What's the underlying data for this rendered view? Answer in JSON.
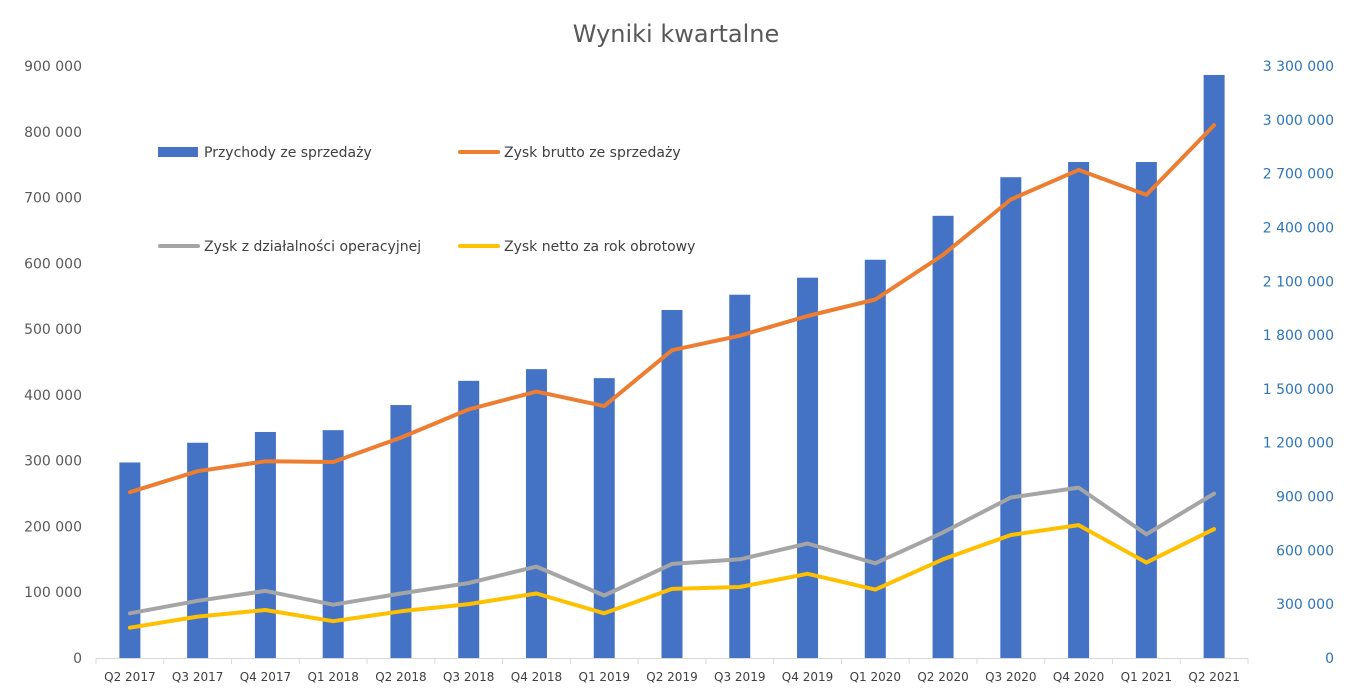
{
  "chart_data": {
    "type": "bar",
    "title": "Wyniki kwartalne",
    "categories": [
      "Q2 2017",
      "Q3 2017",
      "Q4 2017",
      "Q1 2018",
      "Q2 2018",
      "Q3 2018",
      "Q4 2018",
      "Q1 2019",
      "Q2 2019",
      "Q3 2019",
      "Q4 2019",
      "Q1 2020",
      "Q2 2020",
      "Q3 2020",
      "Q4 2020",
      "Q1 2021",
      "Q2 2021"
    ],
    "left_axis": {
      "min": 0,
      "max": 900000,
      "ticks": [
        0,
        100000,
        200000,
        300000,
        400000,
        500000,
        600000,
        700000,
        800000,
        900000
      ],
      "tick_labels": [
        "0",
        "100 000",
        "200 000",
        "300 000",
        "400 000",
        "500 000",
        "600 000",
        "700 000",
        "800 000",
        "900 000"
      ]
    },
    "right_axis": {
      "min": 0,
      "max": 3300000,
      "ticks": [
        0,
        300000,
        600000,
        900000,
        1200000,
        1500000,
        1800000,
        2100000,
        2400000,
        2700000,
        3000000,
        3300000
      ],
      "tick_labels": [
        "0",
        "300 000",
        "600 000",
        "900 000",
        "1 200 000",
        "1 500 000",
        "1 800 000",
        "2 100 000",
        "2 400 000",
        "2 700 000",
        "3 000 000",
        "3 300 000"
      ]
    },
    "grid": false,
    "legend_position": "top-left-inside",
    "series": [
      {
        "name": "Przychody ze sprzedaży",
        "type": "bar",
        "axis": "right",
        "color": "#4472c4",
        "values": [
          1090000,
          1200000,
          1260000,
          1270000,
          1410000,
          1545000,
          1610000,
          1560000,
          1940000,
          2025000,
          2120000,
          2220000,
          2465000,
          2680000,
          2765000,
          2765000,
          3250000
        ]
      },
      {
        "name": "Zysk brutto ze sprzedaży",
        "type": "line",
        "axis": "left",
        "color": "#ed7d31",
        "values": [
          252000,
          284000,
          299000,
          298000,
          335000,
          378000,
          405000,
          383000,
          468000,
          490000,
          520000,
          545000,
          613000,
          697000,
          742000,
          704000,
          810000
        ]
      },
      {
        "name": "Zysk z działalności operacyjnej",
        "type": "line",
        "axis": "left",
        "color": "#a5a5a5",
        "values": [
          68000,
          87000,
          102000,
          81000,
          98000,
          114000,
          139000,
          95000,
          143000,
          150000,
          174000,
          144000,
          191000,
          244000,
          259000,
          188000,
          250000
        ]
      },
      {
        "name": "Zysk netto za rok obrotowy",
        "type": "line",
        "axis": "left",
        "color": "#ffc000",
        "values": [
          46000,
          63000,
          73000,
          56000,
          71000,
          82000,
          98000,
          68000,
          105000,
          108000,
          128000,
          104000,
          150000,
          187000,
          202000,
          145000,
          196000
        ]
      }
    ]
  }
}
